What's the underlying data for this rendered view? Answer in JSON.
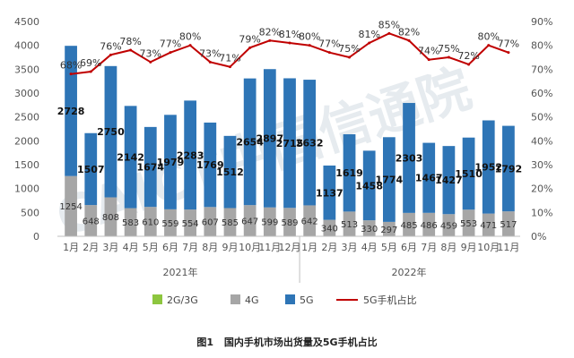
{
  "chart_data": {
    "type": "bar",
    "categories": [
      "1月",
      "2月",
      "3月",
      "4月",
      "5月",
      "6月",
      "7月",
      "8月",
      "9月",
      "10月",
      "11月",
      "12月",
      "1月",
      "2月",
      "3月",
      "4月",
      "5月",
      "6月",
      "7月",
      "8月",
      "9月",
      "10月",
      "11月"
    ],
    "year_groups": [
      {
        "label": "2021年",
        "start": 0,
        "end": 11
      },
      {
        "label": "2022年",
        "start": 12,
        "end": 22
      }
    ],
    "series": [
      {
        "name": "2G/3G",
        "type": "bar",
        "color": "#8dc63f",
        "values": [
          8,
          6,
          8,
          6,
          6,
          6,
          6,
          6,
          6,
          6,
          6,
          6,
          6,
          5,
          5,
          5,
          5,
          5,
          5,
          5,
          5,
          5,
          5
        ]
      },
      {
        "name": "4G",
        "type": "bar",
        "color": "#a6a6a6",
        "values": [
          1254,
          648,
          808,
          583,
          610,
          559,
          554,
          607,
          585,
          647,
          599,
          589,
          642,
          340,
          513,
          330,
          297,
          485,
          486,
          459,
          553,
          471,
          517
        ]
      },
      {
        "name": "5G",
        "type": "bar",
        "color": "#2e75b6",
        "values": [
          2728,
          1507,
          2750,
          2142,
          1674,
          1979,
          2283,
          1769,
          1512,
          2654,
          2897,
          2715,
          2632,
          1137,
          1619,
          1458,
          1774,
          2303,
          1467,
          1427,
          1510,
          1952,
          1792
        ]
      },
      {
        "name": "5G手机占比",
        "type": "line",
        "color": "#c00000",
        "axis": "right",
        "values": [
          68,
          69,
          76,
          78,
          73,
          77,
          80,
          73,
          71,
          79,
          82,
          81,
          80,
          77,
          75,
          81,
          85,
          82,
          74,
          75,
          72,
          80,
          77
        ]
      }
    ],
    "left_axis": {
      "ylim": [
        0,
        4500
      ],
      "ticks": [
        0,
        500,
        1000,
        1500,
        2000,
        2500,
        3000,
        3500,
        4000,
        4500
      ]
    },
    "right_axis": {
      "ylim": [
        0,
        90
      ],
      "ticks": [
        "0%",
        "10%",
        "20%",
        "30%",
        "40%",
        "50%",
        "60%",
        "70%",
        "80%",
        "90%"
      ]
    },
    "right_label_suffix": "%",
    "legend": {
      "placement": "bottom"
    },
    "grid": false,
    "watermark": "CAICT中国信通院"
  },
  "caption": {
    "fig_no": "图1",
    "text": "国内手机市场出货量及5G手机占比"
  }
}
